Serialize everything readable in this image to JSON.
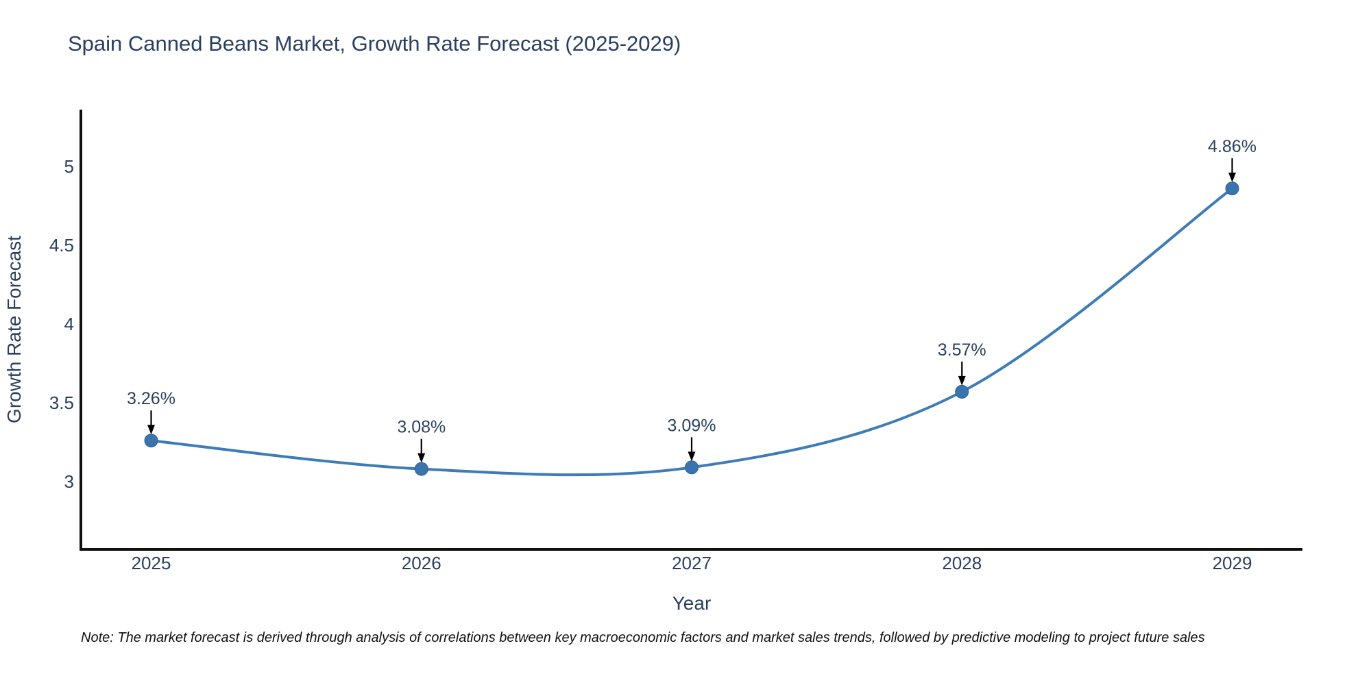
{
  "title": "Spain Canned Beans Market, Growth Rate Forecast (2025-2029)",
  "note": "Note: The market forecast is derived through analysis of correlations between key macroeconomic factors and market sales trends, followed by predictive modeling to project future sales",
  "colors": {
    "line": "#3e7cb8",
    "marker_fill": "#3a74ad",
    "marker_stroke": "#2f5f8f",
    "axis_line": "#0f0f0f",
    "annotation_arrow": "#000000",
    "text": "#2a3f5f",
    "background": "#ffffff"
  },
  "chart_data": {
    "type": "line",
    "line_shape": "spline",
    "title": "Spain Canned Beans Market, Growth Rate Forecast (2025-2029)",
    "xlabel": "Year",
    "ylabel": "Growth Rate Forecast",
    "x": [
      2025,
      2026,
      2027,
      2028,
      2029
    ],
    "values": [
      3.26,
      3.08,
      3.09,
      3.57,
      4.86
    ],
    "point_labels": [
      "3.26%",
      "3.08%",
      "3.09%",
      "3.57%",
      "4.86%"
    ],
    "x_tick_labels": [
      "2025",
      "2026",
      "2027",
      "2028",
      "2029"
    ],
    "y_tick_labels": [
      "3",
      "3.5",
      "4",
      "4.5",
      "5"
    ],
    "y_tick_values": [
      3,
      3.5,
      4,
      4.5,
      5
    ],
    "xlim": [
      2024.74,
      2029.26
    ],
    "ylim": [
      2.57,
      5.36
    ],
    "grid": false,
    "legend": false,
    "annotations_have_arrows": true
  }
}
